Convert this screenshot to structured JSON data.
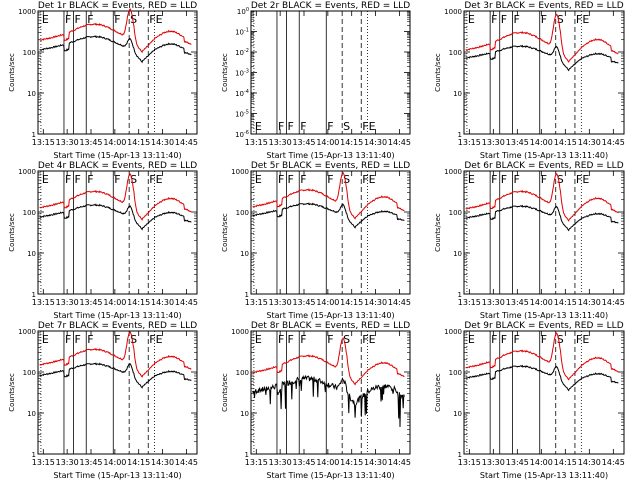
{
  "figure": {
    "panels_grid": [
      3,
      3
    ]
  },
  "chart_data": [
    {
      "type": "line",
      "title": "Det 1r BLACK = Events, RED = LLD",
      "xlabel": "Start Time (15-Apr-13 13:11:40)",
      "ylabel": "Counts/sec",
      "y_scale": "log",
      "ylim": [
        1,
        1000
      ],
      "y_ticks": [
        "1",
        "10",
        "100",
        "1000"
      ],
      "x_ticks": [
        "13:15",
        "13:30",
        "13:45",
        "14:00",
        "14:15",
        "14:30",
        "14:45"
      ],
      "xlim": [
        "13:11:40",
        "14:51:40"
      ],
      "series": [
        {
          "name": "Events",
          "color": "#000000",
          "profile": "normal",
          "base": 150,
          "peak": 240,
          "flare": 90
        },
        {
          "name": "LLD",
          "color": "#e00000",
          "profile": "normal",
          "base": 260,
          "peak": 480,
          "flare": 900
        }
      ],
      "flags": [
        {
          "label": "E",
          "time": "13:13:30",
          "style": "dotted"
        },
        {
          "label": "F",
          "time": "13:28:00",
          "style": "solid"
        },
        {
          "label": "F",
          "time": "13:34:00",
          "style": "solid"
        },
        {
          "label": "F",
          "time": "13:42:00",
          "style": "solid"
        },
        {
          "label": "F",
          "time": "13:59:00",
          "style": "solid"
        },
        {
          "label": "S",
          "time": "14:09:00",
          "style": "dashed"
        },
        {
          "label": "F",
          "time": "14:21:00",
          "style": "dashed"
        },
        {
          "label": "E",
          "time": "14:25:00",
          "style": "dotted"
        }
      ],
      "flag_label_pos": "top"
    },
    {
      "type": "line",
      "title": "Det 2r BLACK = Events, RED = LLD",
      "xlabel": "Start Time (15-Apr-13 13:11:40)",
      "ylabel": "Counts/sec",
      "y_scale": "log",
      "ylim": [
        1e-06,
        1
      ],
      "y_ticks": [
        "10^-6",
        "10^-5",
        "10^-4",
        "10^-3",
        "10^-2",
        "10^-1",
        "10^0"
      ],
      "x_ticks": [
        "13:15",
        "13:30",
        "13:45",
        "14:00",
        "14:15",
        "14:30",
        "14:45"
      ],
      "xlim": [
        "13:11:40",
        "14:51:40"
      ],
      "series": [],
      "flags": [
        {
          "label": "E",
          "time": "13:13:30",
          "style": "dotted"
        },
        {
          "label": "F",
          "time": "13:28:00",
          "style": "solid"
        },
        {
          "label": "F",
          "time": "13:34:00",
          "style": "solid"
        },
        {
          "label": "F",
          "time": "13:42:00",
          "style": "solid"
        },
        {
          "label": "F",
          "time": "13:59:00",
          "style": "solid"
        },
        {
          "label": "S",
          "time": "14:09:00",
          "style": "dashed"
        },
        {
          "label": "F",
          "time": "14:21:00",
          "style": "dashed"
        },
        {
          "label": "E",
          "time": "14:25:00",
          "style": "dotted"
        }
      ],
      "flag_label_pos": "bottom"
    },
    {
      "type": "line",
      "title": "Det 3r BLACK = Events, RED = LLD",
      "xlabel": "Start Time (15-Apr-13 13:11:40)",
      "ylabel": "Counts/sec",
      "y_scale": "log",
      "ylim": [
        1,
        1000
      ],
      "y_ticks": [
        "1",
        "10",
        "100",
        "1000"
      ],
      "x_ticks": [
        "13:15",
        "13:30",
        "13:45",
        "14:00",
        "14:15",
        "14:30",
        "14:45"
      ],
      "xlim": [
        "13:11:40",
        "14:51:40"
      ],
      "series": [
        {
          "name": "Events",
          "color": "#000000",
          "profile": "normal",
          "base": 95,
          "peak": 140,
          "flare": 60
        },
        {
          "name": "LLD",
          "color": "#e00000",
          "profile": "normal",
          "base": 150,
          "peak": 300,
          "flare": 700
        }
      ],
      "flags": [
        {
          "label": "E",
          "time": "13:13:30",
          "style": "dotted"
        },
        {
          "label": "F",
          "time": "13:28:00",
          "style": "solid"
        },
        {
          "label": "F",
          "time": "13:34:00",
          "style": "solid"
        },
        {
          "label": "F",
          "time": "13:42:00",
          "style": "solid"
        },
        {
          "label": "F",
          "time": "13:59:00",
          "style": "solid"
        },
        {
          "label": "S",
          "time": "14:09:00",
          "style": "dashed"
        },
        {
          "label": "F",
          "time": "14:21:00",
          "style": "dashed"
        },
        {
          "label": "E",
          "time": "14:25:00",
          "style": "dotted"
        }
      ],
      "flag_label_pos": "top"
    },
    {
      "type": "line",
      "title": "Det 4r BLACK = Events, RED = LLD",
      "xlabel": "Start Time (15-Apr-13 13:11:40)",
      "ylabel": "Counts/sec",
      "y_scale": "log",
      "ylim": [
        1,
        1000
      ],
      "y_ticks": [
        "1",
        "10",
        "100",
        "1000"
      ],
      "x_ticks": [
        "13:15",
        "13:30",
        "13:45",
        "14:00",
        "14:15",
        "14:30",
        "14:45"
      ],
      "xlim": [
        "13:11:40",
        "14:51:40"
      ],
      "series": [
        {
          "name": "Events",
          "color": "#000000",
          "profile": "normal",
          "base": 100,
          "peak": 150,
          "flare": 60
        },
        {
          "name": "LLD",
          "color": "#e00000",
          "profile": "normal",
          "base": 170,
          "peak": 320,
          "flare": 700
        }
      ],
      "flags": [
        {
          "label": "E",
          "time": "13:13:30",
          "style": "dotted"
        },
        {
          "label": "F",
          "time": "13:28:00",
          "style": "solid"
        },
        {
          "label": "F",
          "time": "13:34:00",
          "style": "solid"
        },
        {
          "label": "F",
          "time": "13:42:00",
          "style": "solid"
        },
        {
          "label": "F",
          "time": "13:59:00",
          "style": "solid"
        },
        {
          "label": "S",
          "time": "14:09:00",
          "style": "dashed"
        },
        {
          "label": "F",
          "time": "14:21:00",
          "style": "dashed"
        },
        {
          "label": "E",
          "time": "14:25:00",
          "style": "dotted"
        }
      ],
      "flag_label_pos": "top"
    },
    {
      "type": "line",
      "title": "Det 5r BLACK = Events, RED = LLD",
      "xlabel": "Start Time (15-Apr-13 13:11:40)",
      "ylabel": "Counts/sec",
      "y_scale": "log",
      "ylim": [
        1,
        1000
      ],
      "y_ticks": [
        "1",
        "10",
        "100",
        "1000"
      ],
      "x_ticks": [
        "13:15",
        "13:30",
        "13:45",
        "14:00",
        "14:15",
        "14:30",
        "14:45"
      ],
      "xlim": [
        "13:11:40",
        "14:51:40"
      ],
      "series": [
        {
          "name": "Events",
          "color": "#000000",
          "profile": "normal",
          "base": 110,
          "peak": 160,
          "flare": 65
        },
        {
          "name": "LLD",
          "color": "#e00000",
          "profile": "normal",
          "base": 180,
          "peak": 350,
          "flare": 750
        }
      ],
      "flags": [
        {
          "label": "E",
          "time": "13:13:30",
          "style": "dotted"
        },
        {
          "label": "F",
          "time": "13:28:00",
          "style": "solid"
        },
        {
          "label": "F",
          "time": "13:34:00",
          "style": "solid"
        },
        {
          "label": "F",
          "time": "13:42:00",
          "style": "solid"
        },
        {
          "label": "F",
          "time": "13:59:00",
          "style": "solid"
        },
        {
          "label": "S",
          "time": "14:09:00",
          "style": "dashed"
        },
        {
          "label": "F",
          "time": "14:21:00",
          "style": "dashed"
        },
        {
          "label": "E",
          "time": "14:25:00",
          "style": "dotted"
        }
      ],
      "flag_label_pos": "top"
    },
    {
      "type": "line",
      "title": "Det 6r BLACK = Events, RED = LLD",
      "xlabel": "Start Time (15-Apr-13 13:11:40)",
      "ylabel": "Counts/sec",
      "y_scale": "log",
      "ylim": [
        1,
        1000
      ],
      "y_ticks": [
        "1",
        "10",
        "100",
        "1000"
      ],
      "x_ticks": [
        "13:15",
        "13:30",
        "13:45",
        "14:00",
        "14:15",
        "14:30",
        "14:45"
      ],
      "xlim": [
        "13:11:40",
        "14:51:40"
      ],
      "series": [
        {
          "name": "Events",
          "color": "#000000",
          "profile": "normal",
          "base": 95,
          "peak": 140,
          "flare": 60
        },
        {
          "name": "LLD",
          "color": "#e00000",
          "profile": "normal",
          "base": 160,
          "peak": 320,
          "flare": 720
        }
      ],
      "flags": [
        {
          "label": "E",
          "time": "13:13:30",
          "style": "dotted"
        },
        {
          "label": "F",
          "time": "13:28:00",
          "style": "solid"
        },
        {
          "label": "F",
          "time": "13:34:00",
          "style": "solid"
        },
        {
          "label": "F",
          "time": "13:42:00",
          "style": "solid"
        },
        {
          "label": "F",
          "time": "13:59:00",
          "style": "solid"
        },
        {
          "label": "S",
          "time": "14:09:00",
          "style": "dashed"
        },
        {
          "label": "F",
          "time": "14:21:00",
          "style": "dashed"
        },
        {
          "label": "E",
          "time": "14:25:00",
          "style": "dotted"
        }
      ],
      "flag_label_pos": "top"
    },
    {
      "type": "line",
      "title": "Det 7r BLACK = Events, RED = LLD",
      "xlabel": "Start Time (15-Apr-13 13:11:40)",
      "ylabel": "Counts/sec",
      "y_scale": "log",
      "ylim": [
        1,
        1000
      ],
      "y_ticks": [
        "1",
        "10",
        "100",
        "1000"
      ],
      "x_ticks": [
        "13:15",
        "13:30",
        "13:45",
        "14:00",
        "14:15",
        "14:30",
        "14:45"
      ],
      "xlim": [
        "13:11:40",
        "14:51:40"
      ],
      "series": [
        {
          "name": "Events",
          "color": "#000000",
          "profile": "normal",
          "base": 110,
          "peak": 160,
          "flare": 70
        },
        {
          "name": "LLD",
          "color": "#e00000",
          "profile": "normal",
          "base": 200,
          "peak": 360,
          "flare": 780
        }
      ],
      "flags": [
        {
          "label": "E",
          "time": "13:13:30",
          "style": "dotted"
        },
        {
          "label": "F",
          "time": "13:28:00",
          "style": "solid"
        },
        {
          "label": "F",
          "time": "13:34:00",
          "style": "solid"
        },
        {
          "label": "F",
          "time": "13:42:00",
          "style": "solid"
        },
        {
          "label": "F",
          "time": "13:59:00",
          "style": "solid"
        },
        {
          "label": "S",
          "time": "14:09:00",
          "style": "dashed"
        },
        {
          "label": "F",
          "time": "14:21:00",
          "style": "dashed"
        },
        {
          "label": "E",
          "time": "14:25:00",
          "style": "dotted"
        }
      ],
      "flag_label_pos": "top"
    },
    {
      "type": "line",
      "title": "Det 8r BLACK = Events, RED = LLD",
      "xlabel": "Start Time (15-Apr-13 13:11:40)",
      "ylabel": "Counts/sec",
      "y_scale": "log",
      "ylim": [
        1,
        1000
      ],
      "y_ticks": [
        "1",
        "10",
        "100",
        "1000"
      ],
      "x_ticks": [
        "13:15",
        "13:30",
        "13:45",
        "14:00",
        "14:15",
        "14:30",
        "14:45"
      ],
      "xlim": [
        "13:11:40",
        "14:51:40"
      ],
      "series": [
        {
          "name": "Events",
          "color": "#000000",
          "profile": "noisy",
          "base": 45,
          "peak": 70,
          "flare": 30
        },
        {
          "name": "LLD",
          "color": "#e00000",
          "profile": "normal",
          "base": 130,
          "peak": 250,
          "flare": 560
        }
      ],
      "flags": [
        {
          "label": "E",
          "time": "13:13:30",
          "style": "dotted"
        },
        {
          "label": "F",
          "time": "13:28:00",
          "style": "solid"
        },
        {
          "label": "F",
          "time": "13:34:00",
          "style": "solid"
        },
        {
          "label": "F",
          "time": "13:42:00",
          "style": "solid"
        },
        {
          "label": "F",
          "time": "13:59:00",
          "style": "solid"
        },
        {
          "label": "S",
          "time": "14:09:00",
          "style": "dashed"
        },
        {
          "label": "F",
          "time": "14:21:00",
          "style": "dashed"
        },
        {
          "label": "E",
          "time": "14:25:00",
          "style": "dotted"
        }
      ],
      "flag_label_pos": "top"
    },
    {
      "type": "line",
      "title": "Det 9r BLACK = Events, RED = LLD",
      "xlabel": "Start Time (15-Apr-13 13:11:40)",
      "ylabel": "Counts/sec",
      "y_scale": "log",
      "ylim": [
        1,
        1000
      ],
      "y_ticks": [
        "1",
        "10",
        "100",
        "1000"
      ],
      "x_ticks": [
        "13:15",
        "13:30",
        "13:45",
        "14:00",
        "14:15",
        "14:30",
        "14:45"
      ],
      "xlim": [
        "13:11:40",
        "14:51:40"
      ],
      "series": [
        {
          "name": "Events",
          "color": "#000000",
          "profile": "normal",
          "base": 95,
          "peak": 140,
          "flare": 60
        },
        {
          "name": "LLD",
          "color": "#e00000",
          "profile": "normal",
          "base": 170,
          "peak": 330,
          "flare": 740
        }
      ],
      "flags": [
        {
          "label": "E",
          "time": "13:13:30",
          "style": "dotted"
        },
        {
          "label": "F",
          "time": "13:28:00",
          "style": "solid"
        },
        {
          "label": "F",
          "time": "13:34:00",
          "style": "solid"
        },
        {
          "label": "F",
          "time": "13:42:00",
          "style": "solid"
        },
        {
          "label": "F",
          "time": "13:59:00",
          "style": "solid"
        },
        {
          "label": "S",
          "time": "14:09:00",
          "style": "dashed"
        },
        {
          "label": "F",
          "time": "14:21:00",
          "style": "dashed"
        },
        {
          "label": "E",
          "time": "14:25:00",
          "style": "dotted"
        }
      ],
      "flag_label_pos": "top"
    }
  ]
}
